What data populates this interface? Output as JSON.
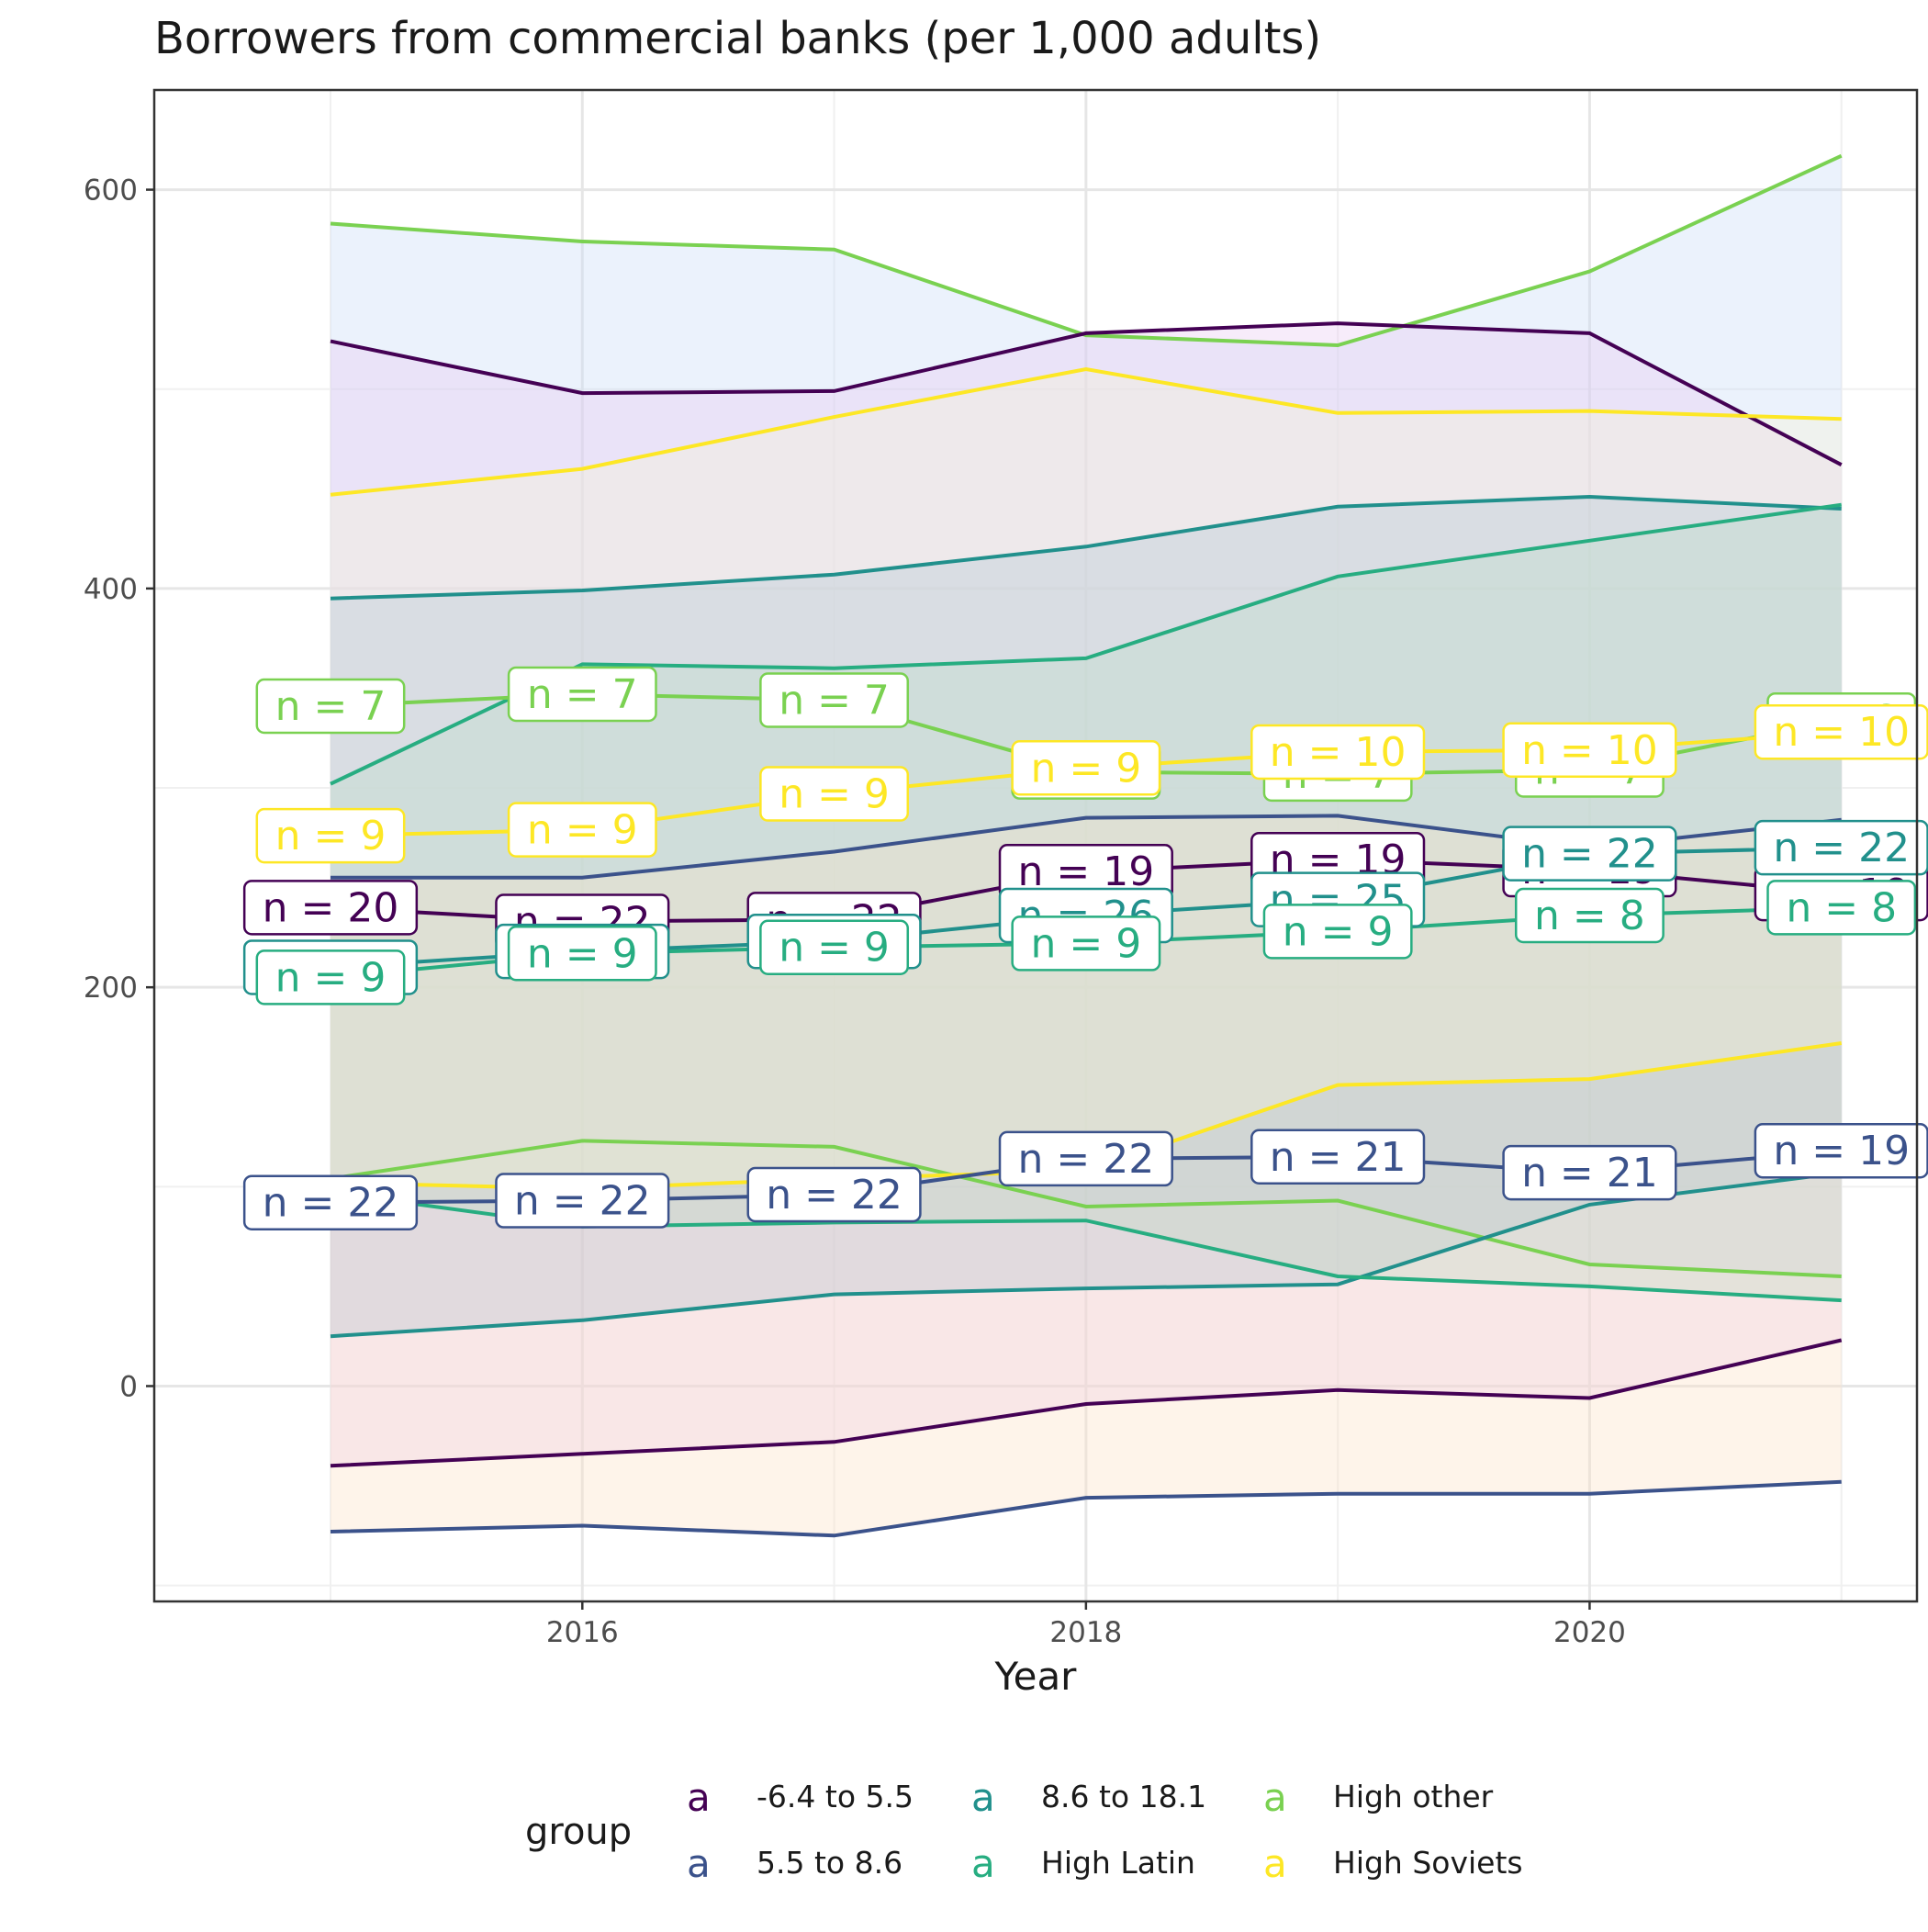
{
  "chart_data": {
    "type": "line",
    "title": "Borrowers from commercial banks (per 1,000 adults)",
    "xlabel": "Year",
    "ylabel": "",
    "x": [
      2015,
      2016,
      2017,
      2018,
      2019,
      2020,
      2021
    ],
    "xlim": [
      2014.3,
      2021.3
    ],
    "ylim": [
      -108,
      650
    ],
    "x_ticks": [
      2016,
      2018,
      2020
    ],
    "y_ticks": [
      0,
      200,
      400,
      600
    ],
    "grid": true,
    "legend": {
      "title": "group",
      "position": "bottom",
      "key_glyph": "a",
      "entries": [
        "-6.4 to 5.5",
        "5.5 to 8.6",
        "8.6 to 18.1",
        "High Latin",
        "High other",
        "High Soviets"
      ]
    },
    "ribbons": [
      {
        "series": "High other",
        "fill": "#C6DBF7",
        "upper": [
          583,
          574,
          570,
          527,
          522,
          559,
          617
        ],
        "lower": [
          104,
          123,
          120,
          90,
          93,
          61,
          55
        ]
      },
      {
        "series": "-6.4 to 5.5",
        "fill": "#E8C8F0",
        "upper": [
          524,
          498,
          499,
          528,
          533,
          528,
          462
        ],
        "lower": [
          -40,
          -34,
          -28,
          -9,
          -2,
          -6,
          23
        ]
      },
      {
        "series": "8.6 to 18.1",
        "fill": "#8FB1D4",
        "upper": [
          395,
          399,
          407,
          421,
          441,
          446,
          440
        ],
        "lower": [
          25,
          33,
          46,
          49,
          51,
          91,
          107
        ]
      },
      {
        "series": "High Latin",
        "fill": "#9FD5C4",
        "upper": [
          302,
          362,
          360,
          365,
          406,
          424,
          442
        ],
        "lower": [
          97,
          80,
          82,
          83,
          55,
          50,
          43
        ]
      },
      {
        "series": "5.5 to 8.6",
        "fill": "#FBE0C4",
        "upper": [
          255,
          255,
          268,
          285,
          286,
          270,
          284
        ],
        "lower": [
          -73,
          -70,
          -75,
          -56,
          -54,
          -54,
          -48
        ]
      },
      {
        "series": "High Soviets",
        "fill": "#F7F4D4",
        "upper": [
          447,
          460,
          486,
          510,
          488,
          489,
          485
        ],
        "lower": [
          102,
          99,
          104,
          108,
          151,
          154,
          172
        ]
      }
    ],
    "series": [
      {
        "name": "-6.4 to 5.5",
        "color": "#440154",
        "values": [
          240,
          233,
          234,
          258,
          264,
          259,
          247
        ],
        "n": [
          20,
          22,
          22,
          19,
          19,
          19,
          19
        ]
      },
      {
        "name": "5.5 to 8.6",
        "color": "#3B528B",
        "values": [
          92,
          93,
          96,
          114,
          115,
          107,
          118
        ],
        "n": [
          22,
          22,
          22,
          22,
          21,
          21,
          19
        ]
      },
      {
        "name": "8.6 to 18.1",
        "color": "#21908C",
        "values": [
          210,
          218,
          223,
          236,
          244,
          267,
          270
        ],
        "n": [
          21,
          22,
          22,
          26,
          25,
          22,
          22
        ]
      },
      {
        "name": "High Latin",
        "color": "#27AD81",
        "values": [
          205,
          217,
          220,
          222,
          228,
          236,
          240
        ],
        "n": [
          9,
          9,
          9,
          9,
          9,
          8,
          8
        ]
      },
      {
        "name": "High other",
        "color": "#7AD151",
        "values": [
          341,
          347,
          344,
          308,
          307,
          309,
          334
        ],
        "n": [
          7,
          7,
          7,
          7,
          7,
          7,
          6
        ]
      },
      {
        "name": "High Soviets",
        "color": "#FDE725",
        "values": [
          276,
          279,
          297,
          310,
          318,
          319,
          328
        ],
        "n": [
          9,
          9,
          9,
          9,
          10,
          10,
          10
        ]
      }
    ]
  }
}
